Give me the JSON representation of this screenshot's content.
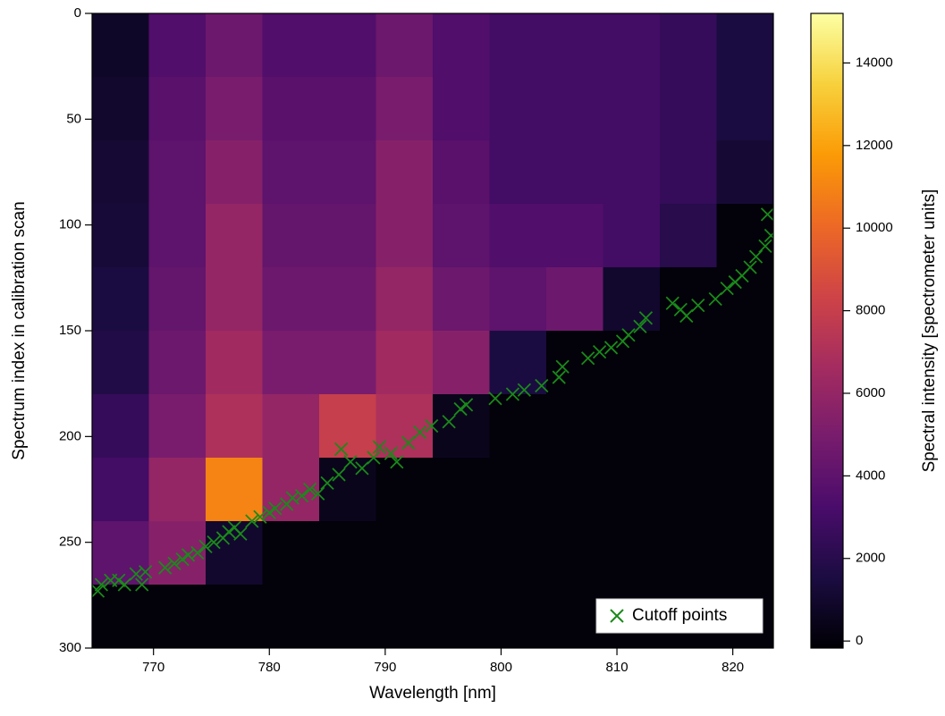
{
  "chart_data": {
    "type": "heatmap",
    "xlabel": "Wavelength [nm]",
    "ylabel": "Spectrum index in calibration scan",
    "colorbar_label": "Spectral intensity [spectrometer units]",
    "xlim": [
      764.7,
      823.5
    ],
    "xticks": [
      770,
      780,
      790,
      800,
      810,
      820
    ],
    "ylim": [
      0,
      300
    ],
    "y_inverted": true,
    "yticks": [
      0,
      50,
      100,
      150,
      200,
      250,
      300
    ],
    "clim": [
      -170,
      15200
    ],
    "cticks": [
      0,
      2000,
      4000,
      6000,
      8000,
      10000,
      12000,
      14000
    ],
    "colormap_colors": [
      "#000004",
      "#1b0c41",
      "#4a0c6b",
      "#781c6d",
      "#a52c60",
      "#cf4446",
      "#ed6925",
      "#fb9b06",
      "#f7d13d",
      "#fcffa4"
    ],
    "xbins": [
      764.7,
      769.6,
      774.5,
      779.4,
      784.3,
      789.2,
      794.1,
      799,
      803.9,
      808.8,
      813.7,
      818.6,
      823.5
    ],
    "ybins": [
      0,
      30,
      60,
      90,
      120,
      150,
      180,
      210,
      240,
      270,
      300
    ],
    "z": [
      [
        800,
        3500,
        4500,
        3500,
        3500,
        4500,
        3500,
        3000,
        3000,
        3000,
        2500,
        1500
      ],
      [
        1000,
        3800,
        5000,
        3800,
        3800,
        5000,
        3500,
        3000,
        3000,
        3000,
        2500,
        1500
      ],
      [
        1200,
        4000,
        5500,
        4000,
        4000,
        5500,
        3800,
        3000,
        3000,
        3000,
        2500,
        1200
      ],
      [
        1300,
        4000,
        6000,
        4200,
        4200,
        5500,
        4000,
        3500,
        3500,
        3000,
        2000,
        0
      ],
      [
        1500,
        4200,
        6000,
        4500,
        4500,
        6000,
        4500,
        4000,
        4500,
        1000,
        0,
        0
      ],
      [
        1800,
        4500,
        6500,
        5000,
        5000,
        6500,
        5500,
        1500,
        0,
        0,
        0,
        0
      ],
      [
        2500,
        5000,
        7000,
        6000,
        8000,
        7000,
        500,
        0,
        0,
        0,
        0,
        0
      ],
      [
        3000,
        6000,
        11000,
        6000,
        500,
        0,
        0,
        0,
        0,
        0,
        0,
        0
      ],
      [
        4000,
        5500,
        1000,
        0,
        0,
        0,
        0,
        0,
        0,
        0,
        0,
        0
      ],
      [
        0,
        0,
        0,
        0,
        0,
        0,
        0,
        0,
        0,
        0,
        0,
        0
      ]
    ],
    "series": [
      {
        "name": "Cutoff points",
        "color": "#1a8a1a",
        "x": [
          765.2,
          765.5,
          766.3,
          767,
          767.5,
          768.5,
          769,
          769.3,
          771,
          771.8,
          772.5,
          773,
          773.8,
          774.5,
          775.2,
          776,
          776.5,
          777,
          777.5,
          778.5,
          779.2,
          780,
          780.5,
          781.5,
          782,
          782.8,
          783.5,
          784.2,
          785,
          786,
          786.2,
          787,
          788,
          789,
          789.5,
          790.5,
          791,
          792,
          793,
          794,
          795.5,
          796.5,
          797,
          799.5,
          801,
          802,
          803.5,
          805,
          805.3,
          807.5,
          808.5,
          809.5,
          810.5,
          811,
          812,
          812.5,
          814.8,
          815.5,
          816,
          817,
          818.5,
          819.5,
          820.2,
          820.8,
          821.5,
          822,
          822.8,
          823,
          823.3
        ],
        "values": [
          273,
          270,
          268,
          268,
          270,
          265,
          270,
          264,
          262,
          260,
          258,
          256,
          255,
          252,
          250,
          248,
          245,
          243,
          246,
          240,
          238,
          236,
          234,
          232,
          229,
          228,
          225,
          227,
          222,
          218,
          206,
          212,
          215,
          210,
          205,
          208,
          212,
          203,
          198,
          195,
          193,
          187,
          185,
          182,
          180,
          178,
          176,
          172,
          167,
          163,
          160,
          158,
          155,
          152,
          148,
          144,
          137,
          140,
          143,
          138,
          135,
          130,
          127,
          124,
          120,
          115,
          110,
          95,
          105
        ]
      }
    ],
    "legend": "lower right"
  }
}
